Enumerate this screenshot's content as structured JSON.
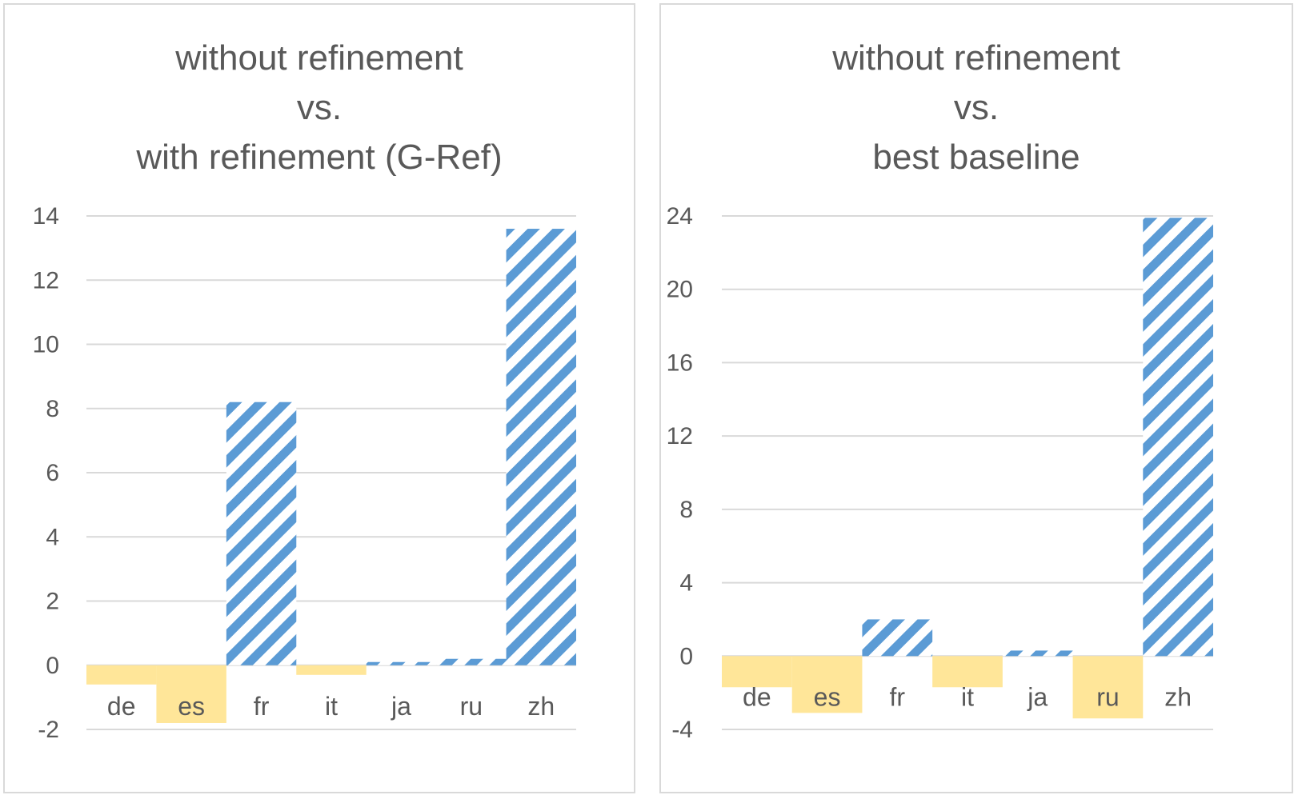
{
  "chart_data": [
    {
      "type": "bar",
      "title_lines": [
        "without refinement",
        "vs.",
        "with refinement (G-Ref)"
      ],
      "categories": [
        "de",
        "es",
        "fr",
        "it",
        "ja",
        "ru",
        "zh"
      ],
      "values": [
        -0.6,
        -1.8,
        8.2,
        -0.3,
        0.1,
        0.2,
        13.6
      ],
      "ylim": [
        -2,
        14
      ],
      "yticks": [
        -2,
        0,
        2,
        4,
        6,
        8,
        10,
        12,
        14
      ],
      "grid": true,
      "legend": "none",
      "colors": {
        "positive": "#5b9bd5",
        "negative": "#ffe699"
      },
      "positive_style": "diagonal-stripes",
      "negative_style": "solid"
    },
    {
      "type": "bar",
      "title_lines": [
        "without refinement",
        "vs.",
        "best baseline"
      ],
      "categories": [
        "de",
        "es",
        "fr",
        "it",
        "ja",
        "ru",
        "zh"
      ],
      "values": [
        -1.7,
        -3.1,
        2.0,
        -1.7,
        0.3,
        -3.4,
        23.9
      ],
      "ylim": [
        -4,
        24
      ],
      "yticks": [
        -4,
        0,
        4,
        8,
        12,
        16,
        20,
        24
      ],
      "grid": true,
      "legend": "none",
      "colors": {
        "positive": "#5b9bd5",
        "negative": "#ffe699"
      },
      "positive_style": "diagonal-stripes",
      "negative_style": "solid"
    }
  ]
}
